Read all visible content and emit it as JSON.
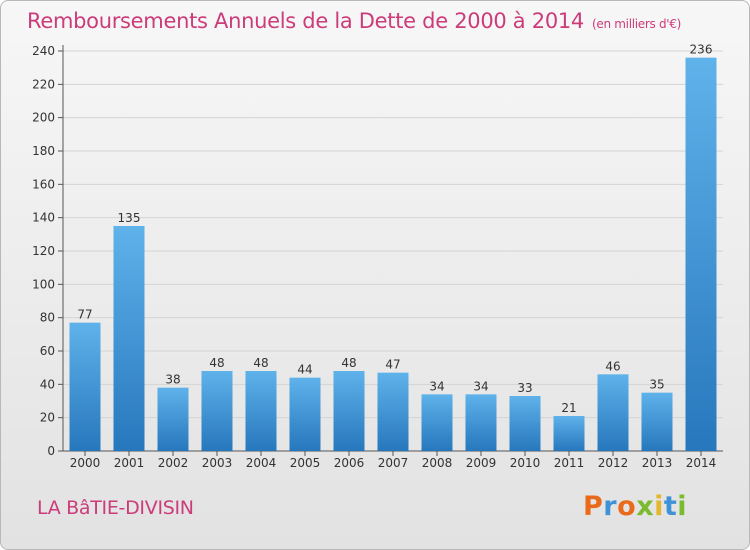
{
  "header": {
    "title": "Remboursements Annuels de la Dette de 2000 à 2014",
    "subtitle": "(en milliers d'€)"
  },
  "footer": {
    "city": "LA BâTIE-DIVISIN",
    "logo": [
      "P",
      "r",
      "o",
      "x",
      "i",
      "t",
      "i"
    ]
  },
  "chart_data": {
    "type": "bar",
    "title": "Remboursements Annuels de la Dette de 2000 à 2014",
    "subtitle": "(en milliers d'€)",
    "categories": [
      "2000",
      "2001",
      "2002",
      "2003",
      "2004",
      "2005",
      "2006",
      "2007",
      "2008",
      "2009",
      "2010",
      "2011",
      "2012",
      "2013",
      "2014"
    ],
    "values": [
      77,
      135,
      38,
      48,
      48,
      44,
      48,
      47,
      34,
      34,
      33,
      21,
      46,
      35,
      236
    ],
    "ylim": [
      0,
      240
    ],
    "yticks": [
      0,
      20,
      40,
      60,
      80,
      100,
      120,
      140,
      160,
      180,
      200,
      220,
      240
    ],
    "grid": true,
    "colors": {
      "bar_light": "#5aaee8",
      "bar_dark": "#2a7fc2",
      "grid": "#d4d4d4"
    }
  }
}
